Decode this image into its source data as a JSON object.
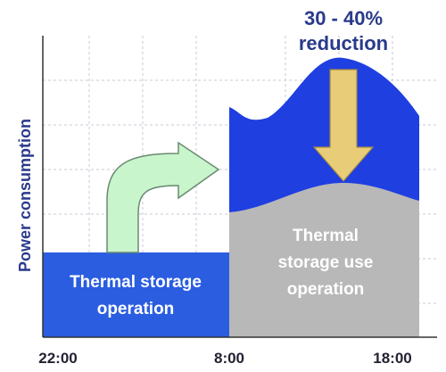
{
  "y_axis_label": "Power consumption",
  "x_labels": [
    "22:00",
    "8:00",
    "18:00"
  ],
  "reduction": {
    "lines": [
      "30 - 40%",
      "reduction"
    ]
  },
  "storage_operation": {
    "lines": [
      "Thermal storage",
      "operation"
    ]
  },
  "storage_use_operation": {
    "lines": [
      "Thermal",
      "storage use",
      "operation"
    ]
  }
}
